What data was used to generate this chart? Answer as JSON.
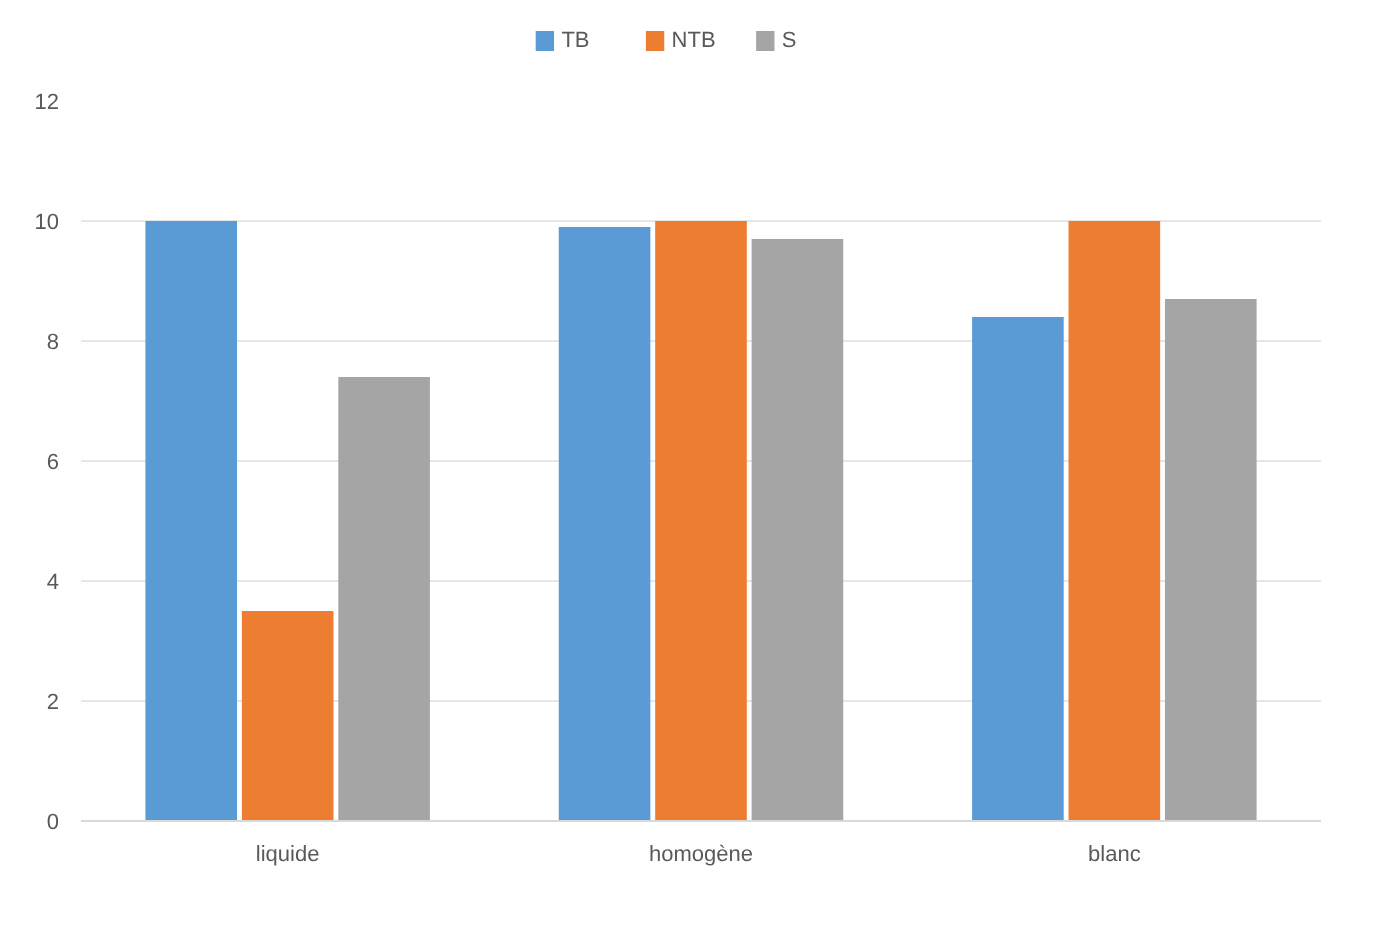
{
  "chart_data": {
    "type": "bar",
    "categories": [
      "liquide",
      "homogène",
      "blanc"
    ],
    "series": [
      {
        "name": "TB",
        "color": "#5b9bd5",
        "values": [
          10,
          9.9,
          8.4
        ]
      },
      {
        "name": "NTB",
        "color": "#ed7d31",
        "values": [
          3.5,
          10,
          10
        ]
      },
      {
        "name": "S",
        "color": "#a5a5a5",
        "values": [
          7.4,
          9.7,
          8.7
        ]
      }
    ],
    "ylim": [
      0,
      12
    ],
    "yticks": [
      0,
      2,
      4,
      6,
      8,
      10,
      12
    ],
    "grid": "y",
    "legend": "top"
  }
}
